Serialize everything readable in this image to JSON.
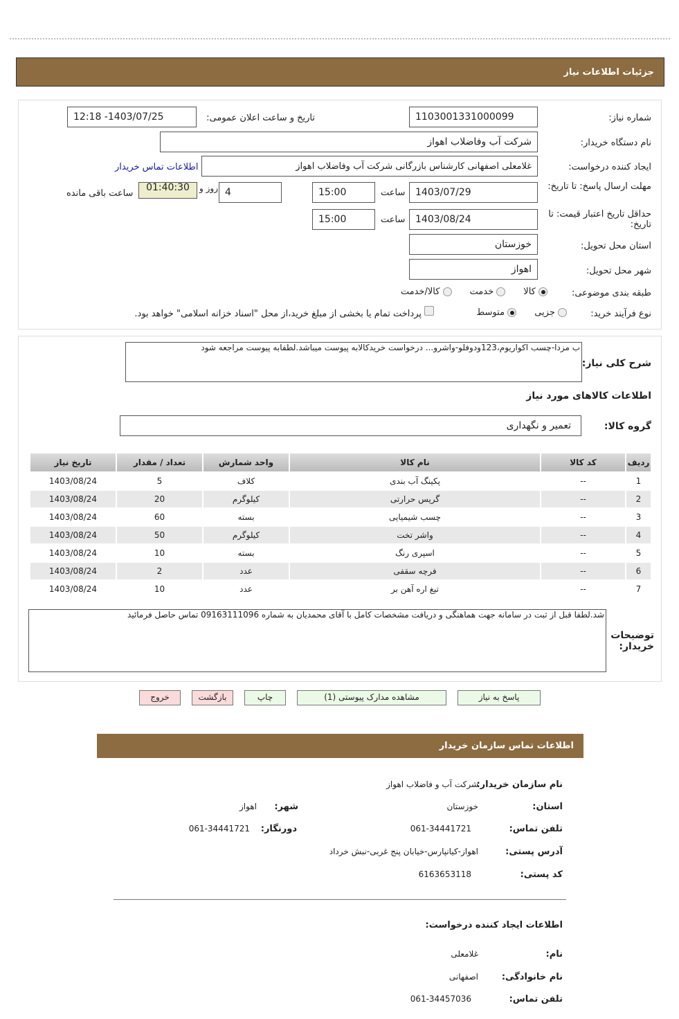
{
  "header": {
    "title": "جزئیات اطلاعات نیاز"
  },
  "form": {
    "need_number_label": "شماره نیاز:",
    "need_number": "1103001331000099",
    "announce_label": "تاریخ و ساعت اعلان عمومی:",
    "announce_value": "1403/07/25- 12:18",
    "buyer_label": "نام دستگاه خریدار:",
    "buyer_value": "شرکت آب وفاضلاب اهواز",
    "creator_label": "ایجاد کننده درخواست:",
    "creator_value": "غلامعلی اصفهانی کارشناس بازرگانی شرکت آب وفاضلاب اهواز",
    "contact_link": "اطلاعات تماس خریدار",
    "deadline_label": "مهلت ارسال پاسخ: تا تاریخ:",
    "deadline_date": "1403/07/29",
    "time_label": "ساعت",
    "deadline_time": "15:00",
    "days_value": "4",
    "days_label": "روز و",
    "remaining_time": "01:40:30",
    "remaining_label": "ساعت باقی مانده",
    "validity_label": "حداقل تاریخ اعتبار قیمت: تا تاریخ:",
    "validity_date": "1403/08/24",
    "validity_time": "15:00",
    "province_label": "استان محل تحویل:",
    "province_value": "خوزستان",
    "city_label": "شهر محل تحویل:",
    "city_value": "اهواز",
    "category_label": "طبقه بندی موضوعی:",
    "category_options": [
      {
        "label": "کالا",
        "checked": true
      },
      {
        "label": "خدمت",
        "checked": false
      },
      {
        "label": "کالا/خدمت",
        "checked": false
      }
    ],
    "process_label": "نوع فرآیند خرید:",
    "process_options": [
      {
        "label": "جزیی",
        "checked": false
      },
      {
        "label": "متوسط",
        "checked": true
      }
    ],
    "treasury_note": "پرداخت تمام یا بخشی از مبلغ خرید،از محل \"اسناد خزانه اسلامی\" خواهد بود."
  },
  "summary": {
    "label": "شرح کلی نیاز:",
    "value": "ب مزدا-چسب اکواریوم،123ودوفلو-واشرو... درخواست خریدکالابه پیوست میباشد.لطفابه پیوست مراجعه شود"
  },
  "goods": {
    "title": "اطلاعات کالاهای مورد نیاز",
    "group_label": "گروه کالا:",
    "group_value": "تعمیر و نگهداری",
    "columns": [
      "ردیف",
      "کد کالا",
      "نام کالا",
      "واحد شمارش",
      "تعداد / مقدار",
      "تاریخ نیاز"
    ],
    "rows": [
      [
        "1",
        "--",
        "پکینگ آب بندی",
        "کلاف",
        "5",
        "1403/08/24"
      ],
      [
        "2",
        "--",
        "گریس حرارتی",
        "کیلوگرم",
        "20",
        "1403/08/24"
      ],
      [
        "3",
        "--",
        "چسب شیمیایی",
        "بسته",
        "60",
        "1403/08/24"
      ],
      [
        "4",
        "--",
        "واشر تخت",
        "کیلوگرم",
        "50",
        "1403/08/24"
      ],
      [
        "5",
        "--",
        "اسپری رنگ",
        "بسته",
        "10",
        "1403/08/24"
      ],
      [
        "6",
        "--",
        "فرچه سقفی",
        "عدد",
        "2",
        "1403/08/24"
      ],
      [
        "7",
        "--",
        "تیغ اره آهن بر",
        "عدد",
        "10",
        "1403/08/24"
      ]
    ]
  },
  "buyer_notes": {
    "label": "توضیحات خریدار:",
    "value": "شد.لطفا قبل از ثبت در سامانه جهت هماهنگی و دریافت مشخصات کامل با آقای  محمدیان به شماره 09163111096 تماس حاصل فرمائید"
  },
  "buttons": {
    "reply": "پاسخ به نیاز",
    "attachments": "مشاهده مدارک پیوستی (1)",
    "print": "چاپ",
    "back": "بازگشت",
    "exit": "خروج"
  },
  "contact": {
    "title": "اطلاعات تماس سازمان خریدار",
    "org_label": "نام سازمان خریدار:",
    "org_value": "شرکت آب و فاضلاب اهواز",
    "province_label": "استان:",
    "province_value": "خوزستان",
    "city_label": "شهر:",
    "city_value": "اهواز",
    "phone_label": "تلفن تماس:",
    "phone_value": "061-34441721",
    "fax_label": "دورنگار:",
    "fax_value": "061-34441721",
    "address_label": "آدرس پستی:",
    "address_value": "اهواز-کیانپارس-خیابان پنج غربی-نبش خرداد",
    "postal_label": "کد پستی:",
    "postal_value": "6163653118",
    "creator_title": "اطلاعات ایجاد کننده درخواست:",
    "name_label": "نام:",
    "name_value": "غلامعلی",
    "family_label": "نام خانوادگی:",
    "family_value": "اصفهانی",
    "creator_phone_label": "تلفن تماس:",
    "creator_phone_value": "061-34457036"
  },
  "colors": {
    "header_bg": "#8c6c40",
    "link": "#1a1aa6",
    "timer_bg": "#eeeecc"
  }
}
